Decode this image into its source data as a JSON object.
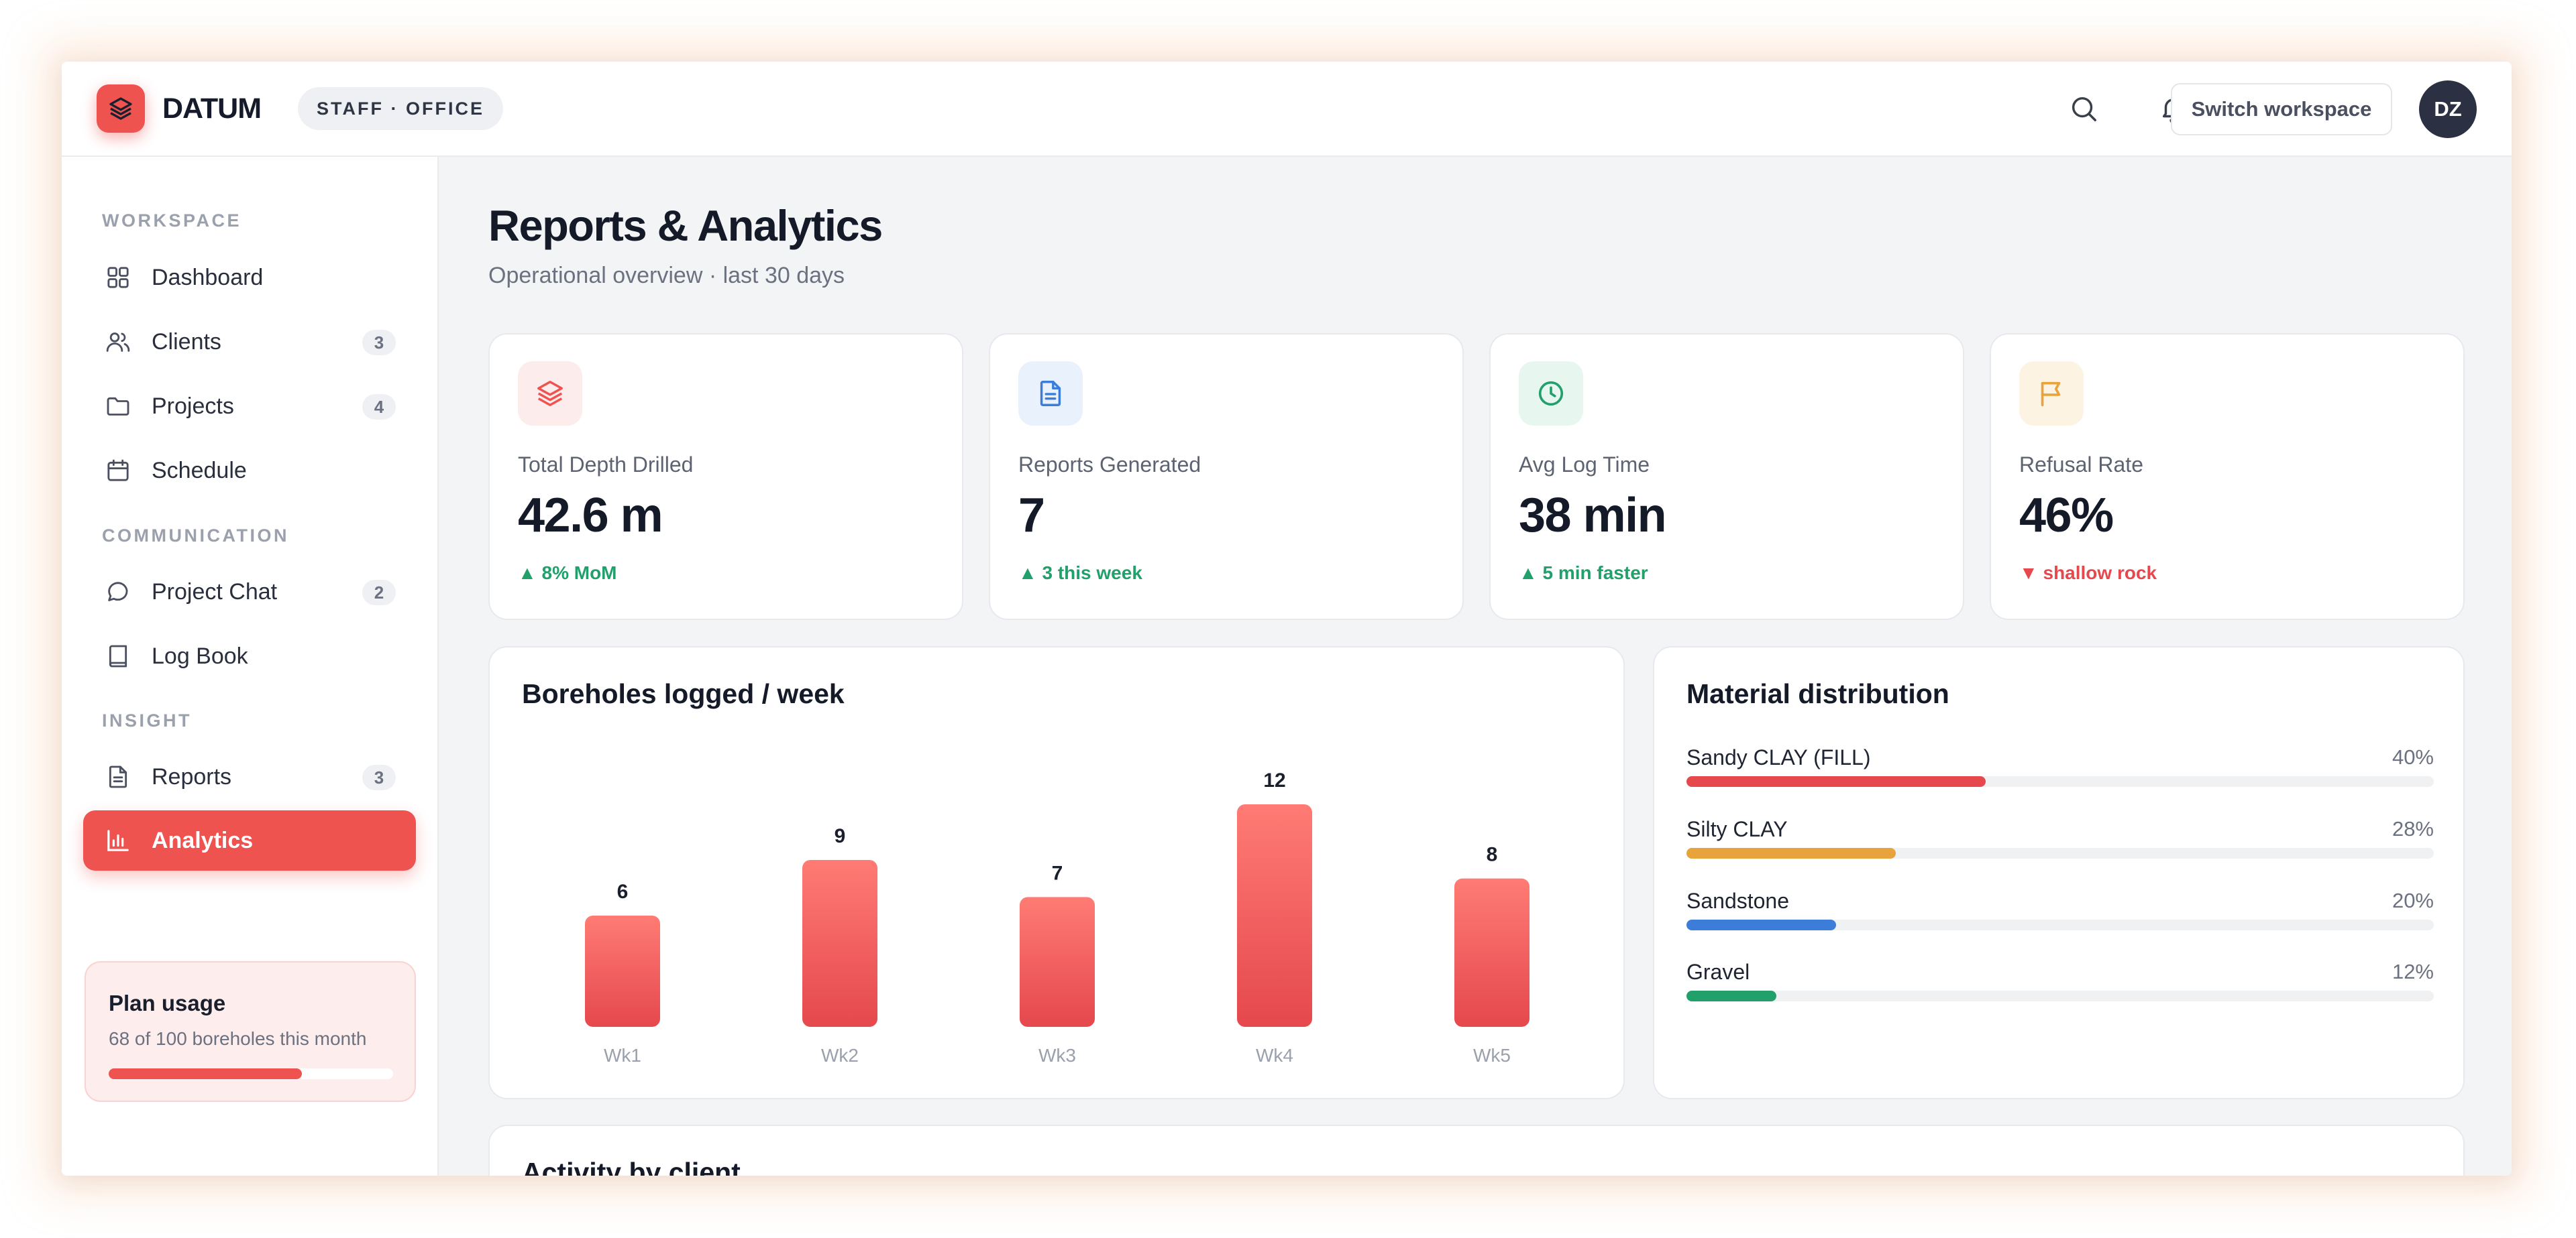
{
  "app": {
    "brand": "DATUM",
    "role_badge": "STAFF · OFFICE",
    "switch_label": "Switch workspace",
    "avatar_initials": "DZ"
  },
  "sidebar": {
    "sections": [
      {
        "title": "WORKSPACE"
      },
      {
        "title": "COMMUNICATION"
      },
      {
        "title": "INSIGHT"
      }
    ],
    "items": [
      {
        "label": "Dashboard",
        "icon": "grid-icon"
      },
      {
        "label": "Clients",
        "icon": "users-icon",
        "count": "3"
      },
      {
        "label": "Projects",
        "icon": "folder-icon",
        "count": "4"
      },
      {
        "label": "Schedule",
        "icon": "calendar-icon"
      },
      {
        "label": "Project Chat",
        "icon": "chat-icon",
        "count": "2"
      },
      {
        "label": "Log Book",
        "icon": "book-icon"
      },
      {
        "label": "Reports",
        "icon": "document-icon",
        "count": "3"
      },
      {
        "label": "Analytics",
        "icon": "bar-chart-icon",
        "active": true
      }
    ],
    "plan": {
      "title": "Plan usage",
      "subtitle": "68 of 100 boreholes this month",
      "used": 68,
      "total": 100
    }
  },
  "header": {
    "title": "Reports & Analytics",
    "subtitle": "Operational overview · last 30 days"
  },
  "stats": [
    {
      "label": "Total Depth Drilled",
      "value": "42.6 m",
      "trend": "▲ 8% MoM",
      "trend_dir": "up",
      "icon": "layers-icon",
      "color": "#ef5350"
    },
    {
      "label": "Reports Generated",
      "value": "7",
      "trend": "▲ 3 this week",
      "trend_dir": "up",
      "icon": "document-icon",
      "color": "#3b82f6"
    },
    {
      "label": "Avg Log Time",
      "value": "38 min",
      "trend": "▲ 5 min faster",
      "trend_dir": "up",
      "icon": "clock-icon",
      "color": "#22a06b"
    },
    {
      "label": "Refusal Rate",
      "value": "46%",
      "trend": "▼ shallow rock",
      "trend_dir": "down",
      "icon": "flag-icon",
      "color": "#e8a33c"
    }
  ],
  "boreholes": {
    "title": "Boreholes logged / week"
  },
  "chart_data": {
    "type": "bar",
    "title": "Boreholes logged / week",
    "categories": [
      "Wk1",
      "Wk2",
      "Wk3",
      "Wk4",
      "Wk5"
    ],
    "values": [
      6,
      9,
      7,
      12,
      8
    ],
    "xlabel": "",
    "ylabel": "",
    "ylim": [
      0,
      12
    ],
    "grid": false
  },
  "materials": {
    "title": "Material distribution",
    "items": [
      {
        "name": "Sandy CLAY (FILL)",
        "pct_label": "40%",
        "value": 40,
        "color": "#e5484d"
      },
      {
        "name": "Silty CLAY",
        "pct_label": "28%",
        "value": 28,
        "color": "#e8a33c"
      },
      {
        "name": "Sandstone",
        "pct_label": "20%",
        "value": 20,
        "color": "#3b7dd8"
      },
      {
        "name": "Gravel",
        "pct_label": "12%",
        "value": 12,
        "color": "#22a06b"
      }
    ]
  },
  "activity": {
    "title": "Activity by client"
  }
}
